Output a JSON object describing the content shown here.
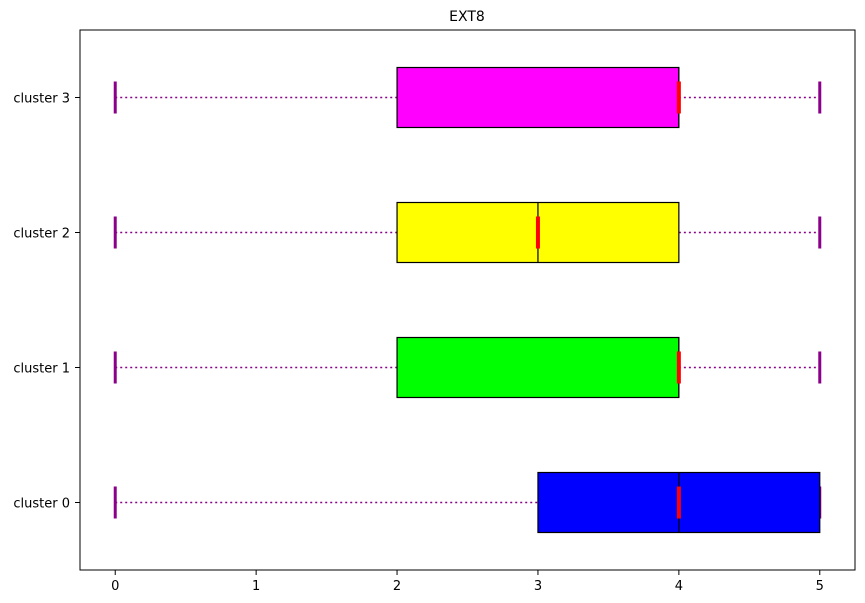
{
  "chart_data": {
    "type": "boxplot",
    "orientation": "horizontal",
    "title": "EXT8",
    "xlabel": "",
    "ylabel": "",
    "xlim": [
      -0.25,
      5.25
    ],
    "xticks": [
      0,
      1,
      2,
      3,
      4,
      5
    ],
    "grid": false,
    "categories": [
      "cluster 0",
      "cluster 1",
      "cluster 2",
      "cluster 3"
    ],
    "series": [
      {
        "whisker_low": 0,
        "q1": 3,
        "median": 4,
        "q3": 5,
        "whisker_high": 5,
        "color": "#0000ff"
      },
      {
        "whisker_low": 0,
        "q1": 2,
        "median": 4,
        "q3": 4,
        "whisker_high": 5,
        "color": "#00ff00"
      },
      {
        "whisker_low": 0,
        "q1": 2,
        "median": 3,
        "q3": 4,
        "whisker_high": 5,
        "color": "#ffff00"
      },
      {
        "whisker_low": 0,
        "q1": 2,
        "median": 4,
        "q3": 4,
        "whisker_high": 5,
        "color": "#ff00ff"
      }
    ],
    "whisker_color": "#8b008b",
    "median_color": "#ff0000",
    "box_edge_color": "#000000"
  }
}
